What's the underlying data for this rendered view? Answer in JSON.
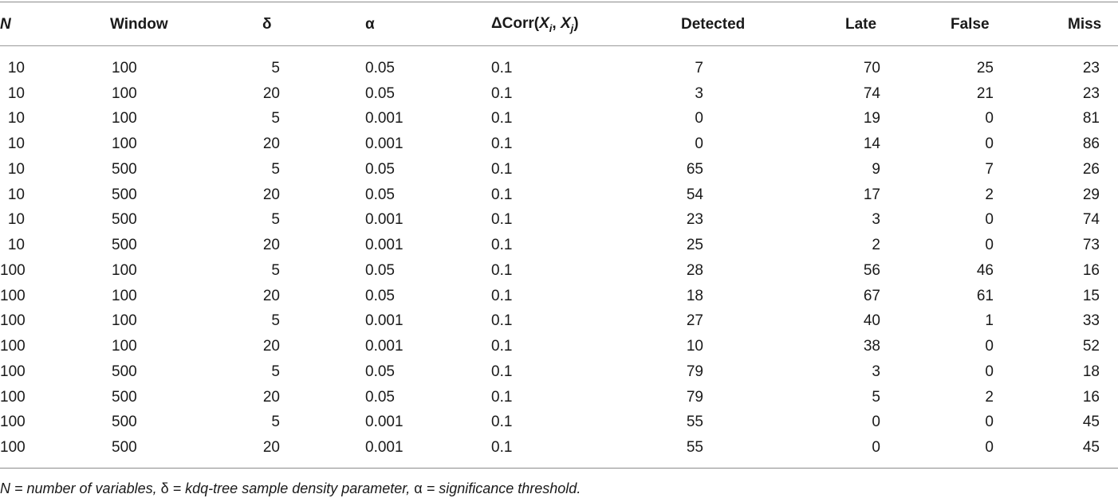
{
  "table": {
    "headers": {
      "n": "N",
      "window": "Window",
      "delta": "δ",
      "alpha": "α",
      "dcorr_prefix": "ΔCorr(",
      "dcorr_xi": "X",
      "dcorr_i": "i",
      "dcorr_sep": ", ",
      "dcorr_xj": "X",
      "dcorr_j": "j",
      "dcorr_suffix": ")",
      "detected": "Detected",
      "late": "Late",
      "false": "False",
      "miss": "Miss"
    },
    "rows": [
      [
        "10",
        "100",
        "5",
        "0.05",
        "0.1",
        "7",
        "70",
        "25",
        "23"
      ],
      [
        "10",
        "100",
        "20",
        "0.05",
        "0.1",
        "3",
        "74",
        "21",
        "23"
      ],
      [
        "10",
        "100",
        "5",
        "0.001",
        "0.1",
        "0",
        "19",
        "0",
        "81"
      ],
      [
        "10",
        "100",
        "20",
        "0.001",
        "0.1",
        "0",
        "14",
        "0",
        "86"
      ],
      [
        "10",
        "500",
        "5",
        "0.05",
        "0.1",
        "65",
        "9",
        "7",
        "26"
      ],
      [
        "10",
        "500",
        "20",
        "0.05",
        "0.1",
        "54",
        "17",
        "2",
        "29"
      ],
      [
        "10",
        "500",
        "5",
        "0.001",
        "0.1",
        "23",
        "3",
        "0",
        "74"
      ],
      [
        "10",
        "500",
        "20",
        "0.001",
        "0.1",
        "25",
        "2",
        "0",
        "73"
      ],
      [
        "100",
        "100",
        "5",
        "0.05",
        "0.1",
        "28",
        "56",
        "46",
        "16"
      ],
      [
        "100",
        "100",
        "20",
        "0.05",
        "0.1",
        "18",
        "67",
        "61",
        "15"
      ],
      [
        "100",
        "100",
        "5",
        "0.001",
        "0.1",
        "27",
        "40",
        "1",
        "33"
      ],
      [
        "100",
        "100",
        "20",
        "0.001",
        "0.1",
        "10",
        "38",
        "0",
        "52"
      ],
      [
        "100",
        "500",
        "5",
        "0.05",
        "0.1",
        "79",
        "3",
        "0",
        "18"
      ],
      [
        "100",
        "500",
        "20",
        "0.05",
        "0.1",
        "79",
        "5",
        "2",
        "16"
      ],
      [
        "100",
        "500",
        "5",
        "0.001",
        "0.1",
        "55",
        "0",
        "0",
        "45"
      ],
      [
        "100",
        "500",
        "20",
        "0.001",
        "0.1",
        "55",
        "0",
        "0",
        "45"
      ]
    ]
  },
  "footnote": {
    "n_sym": "N",
    "eq1": " = number of variables, ",
    "delta_sym": "δ",
    "eq2": " = kdq-tree sample density parameter, ",
    "alpha_sym": "α",
    "eq3": " = significance threshold."
  }
}
